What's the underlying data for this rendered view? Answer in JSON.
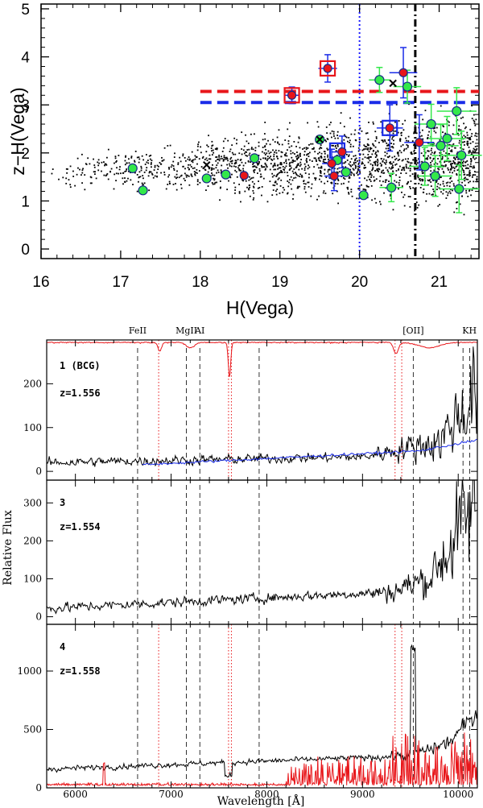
{
  "chart_data": [
    {
      "type": "scatter",
      "title": "",
      "xlabel": "H(Vega)",
      "ylabel": "z−H(Vega)",
      "xlim": [
        16.0,
        21.5
      ],
      "ylim": [
        -0.2,
        5.1
      ],
      "xticks": [
        "16",
        "17",
        "18",
        "19",
        "20",
        "21"
      ],
      "yticks": [
        "0",
        "1",
        "2",
        "3",
        "4",
        "5"
      ],
      "background_points": {
        "count": 1900,
        "note": "field galaxies, small black dots"
      },
      "vertical_lines": [
        {
          "x": 20.0,
          "style": "dotted",
          "color": "#1a1aff"
        },
        {
          "x": 20.7,
          "style": "dash-dot",
          "color": "#000000"
        }
      ],
      "horizontal_lines": [
        {
          "y": 3.28,
          "x_from": 18.0,
          "x_to": 21.5,
          "style": "dashed",
          "color": "#e8161a"
        },
        {
          "y": 3.05,
          "x_from": 18.0,
          "x_to": 21.5,
          "style": "dashed",
          "color": "#1a2ce8"
        }
      ],
      "green_members": [
        {
          "x": 17.15,
          "y": 1.68
        },
        {
          "x": 17.28,
          "y": 1.22
        },
        {
          "x": 18.08,
          "y": 1.47
        },
        {
          "x": 18.32,
          "y": 1.55
        },
        {
          "x": 18.68,
          "y": 1.89
        },
        {
          "x": 19.83,
          "y": 1.6
        },
        {
          "x": 20.05,
          "y": 1.12
        },
        {
          "x": 20.25,
          "y": 3.52
        },
        {
          "x": 20.4,
          "y": 1.28
        },
        {
          "x": 20.6,
          "y": 3.38
        },
        {
          "x": 20.82,
          "y": 1.72
        },
        {
          "x": 20.9,
          "y": 2.6
        },
        {
          "x": 20.95,
          "y": 1.52
        },
        {
          "x": 21.02,
          "y": 2.15
        },
        {
          "x": 21.1,
          "y": 2.3
        },
        {
          "x": 21.22,
          "y": 2.87
        },
        {
          "x": 21.28,
          "y": 1.95
        },
        {
          "x": 21.25,
          "y": 1.25
        },
        {
          "x": 19.5,
          "y": 2.28
        },
        {
          "x": 19.72,
          "y": 1.85
        }
      ],
      "red_members": [
        {
          "x": 18.55,
          "y": 1.53
        },
        {
          "x": 19.15,
          "y": 3.2
        },
        {
          "x": 19.6,
          "y": 3.76
        },
        {
          "x": 19.65,
          "y": 1.78
        },
        {
          "x": 19.68,
          "y": 1.52
        },
        {
          "x": 19.78,
          "y": 2.02
        },
        {
          "x": 20.38,
          "y": 2.52
        },
        {
          "x": 20.55,
          "y": 3.67
        },
        {
          "x": 20.75,
          "y": 2.22
        }
      ],
      "x_marked": [
        {
          "x": 18.08,
          "y": 1.75
        },
        {
          "x": 19.5,
          "y": 2.28
        },
        {
          "x": 20.42,
          "y": 3.45
        }
      ],
      "squares": [
        {
          "x": 19.15,
          "y": 3.2,
          "color": "#e8161a"
        },
        {
          "x": 19.6,
          "y": 3.76,
          "color": "#e8161a"
        },
        {
          "x": 19.72,
          "y": 2.05,
          "color": "#1a2ce8"
        },
        {
          "x": 20.38,
          "y": 2.52,
          "color": "#1a2ce8"
        }
      ]
    },
    {
      "type": "line",
      "title": "",
      "xlabel": "Wavelength [Å]",
      "ylabel": "Relative Flux",
      "xlim": [
        5700,
        10200
      ],
      "xticks": [
        "6000",
        "7000",
        "8000",
        "9000",
        "10000"
      ],
      "line_ids": [
        {
          "label": "FeII",
          "wavelength": 6650
        },
        {
          "label": "MgII",
          "wavelength": 7160
        },
        {
          "label": "AI",
          "wavelength": 7300
        },
        {
          "label": "[OII]",
          "wavelength": 9530
        },
        {
          "label": "KH",
          "wavelength": 10050
        }
      ],
      "line_positions_extra": [
        7920,
        10120
      ],
      "telluric": [
        6870,
        7600,
        7630,
        9340,
        9410
      ],
      "panels": [
        {
          "id": "1 (BCG)",
          "redshift": "z=1.556",
          "ylim": [
            -20,
            300
          ],
          "yticks": [
            "0",
            "100",
            "200"
          ],
          "has_telluric_spectrum": true,
          "has_template": true
        },
        {
          "id": "3",
          "redshift": "z=1.554",
          "ylim": [
            -20,
            360
          ],
          "yticks": [
            "0",
            "100",
            "200",
            "300"
          ],
          "has_telluric_spectrum": false,
          "has_template": false
        },
        {
          "id": "4",
          "redshift": "z=1.558",
          "ylim": [
            0,
            1400
          ],
          "yticks": [
            "0",
            "500",
            "1000"
          ],
          "has_telluric_spectrum": false,
          "has_sky_spectrum": true
        }
      ]
    }
  ],
  "colors": {
    "red": "#e8161a",
    "blue": "#1a2ce8",
    "green": "#33e84a",
    "black": "#000000"
  }
}
